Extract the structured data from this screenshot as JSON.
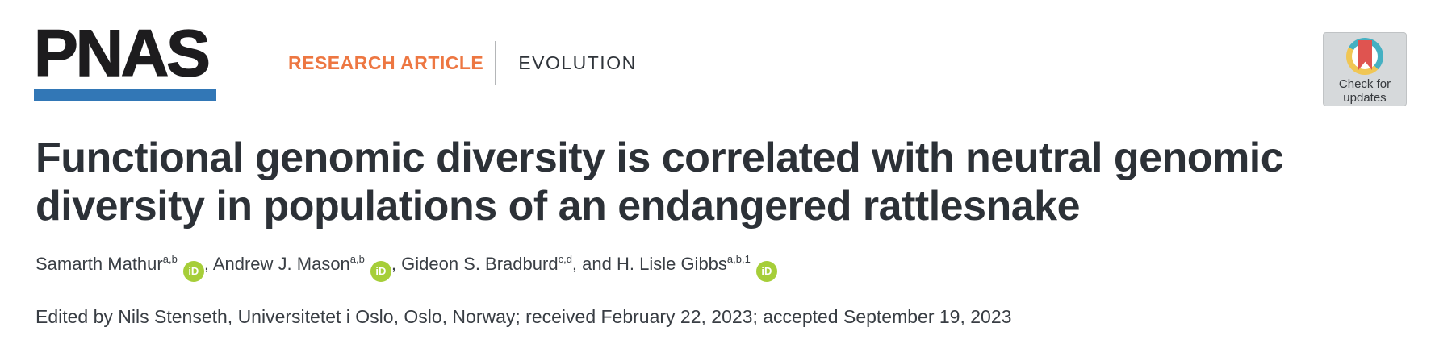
{
  "header": {
    "logo_text": "PNAS",
    "article_type": "RESEARCH ARTICLE",
    "section": "EVOLUTION"
  },
  "badge": {
    "line1": "Check for",
    "line2": "updates"
  },
  "title": {
    "line1": "Functional genomic diversity is correlated with neutral genomic",
    "line2": "diversity in populations of an endangered rattlesnake"
  },
  "authors": {
    "list": [
      {
        "sep": "",
        "name": "Samarth Mathur",
        "sup": "a,b",
        "orcid": true
      },
      {
        "sep": ", ",
        "name": "Andrew J. Mason",
        "sup": "a,b",
        "orcid": true
      },
      {
        "sep": ", ",
        "name": "Gideon S. Bradburd",
        "sup": "c,d",
        "orcid": false
      },
      {
        "sep": ", and ",
        "name": "H. Lisle Gibbs",
        "sup": "a,b,1",
        "orcid": true
      }
    ],
    "orcid_label": "iD"
  },
  "editor_line": "Edited by Nils Stenseth, Universitetet i Oslo, Oslo, Norway; received February 22, 2023; accepted September 19, 2023",
  "colors": {
    "brand_blue": "#3277B6",
    "accent_orange": "#ED7742",
    "title_dark": "#2C3137",
    "orcid_green": "#A6CE39",
    "badge_teal": "#45B0C2",
    "badge_yellow": "#F0C654",
    "badge_red": "#DF5450",
    "badge_background": "#D6D9DB"
  }
}
